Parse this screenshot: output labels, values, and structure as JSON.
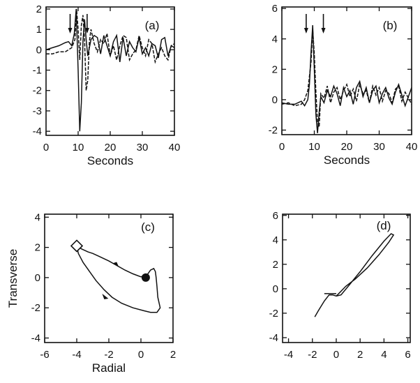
{
  "chart_data": [
    {
      "type": "line",
      "panel_label": "(a)",
      "xlabel": "Seconds",
      "ylabel": "",
      "xlim": [
        0,
        40
      ],
      "ylim": [
        -4.2,
        2.1
      ],
      "xticks": [
        0,
        10,
        20,
        30,
        40
      ],
      "yticks": [
        -4,
        -3,
        -2,
        -1,
        0,
        1,
        2
      ],
      "arrows_x": [
        7.5,
        12.8
      ],
      "series": [
        {
          "name": "",
          "style": "solid",
          "x": [
            0,
            2,
            4,
            6,
            7,
            8,
            8.8,
            9.4,
            10,
            10.5,
            11,
            11.5,
            12,
            12.5,
            13,
            14,
            15,
            16,
            17,
            18,
            19,
            20,
            21,
            22,
            23,
            24,
            25,
            26,
            27,
            28,
            29,
            30,
            31,
            32,
            33,
            34,
            35,
            36,
            37,
            38,
            39,
            40
          ],
          "y": [
            0,
            0.1,
            0.2,
            0.35,
            0.4,
            0.2,
            0.8,
            2.0,
            -1.0,
            -4.0,
            -2.6,
            0.4,
            1.5,
            0.5,
            -0.3,
            0.5,
            0.7,
            0.6,
            -0.2,
            0.7,
            0.2,
            -0.3,
            0.4,
            0.7,
            -0.6,
            0.6,
            -0.3,
            0.4,
            0.1,
            -0.1,
            0.6,
            -0.2,
            0.1,
            -0.3,
            0.3,
            0.2,
            -0.4,
            0.5,
            0.6,
            -0.3,
            0.2,
            0.1
          ]
        },
        {
          "name": "",
          "style": "dashed",
          "x": [
            0,
            2,
            4,
            6,
            7,
            8,
            9,
            9.5,
            10,
            10.5,
            11,
            11.5,
            12,
            12.5,
            13,
            13.5,
            14,
            15,
            16,
            17,
            18,
            19,
            20,
            21,
            22,
            23,
            24,
            25,
            26,
            27,
            28,
            29,
            30,
            31,
            32,
            33,
            34,
            35,
            36,
            37,
            38,
            39,
            40
          ],
          "y": [
            -0.2,
            -0.2,
            -0.1,
            -0.1,
            0,
            0.1,
            0.5,
            2.0,
            1.0,
            -0.5,
            1.2,
            1.7,
            0.5,
            -2.0,
            -1.5,
            0.4,
            1.0,
            0.3,
            -0.1,
            0.5,
            0.3,
            0.8,
            -0.3,
            0.2,
            -0.5,
            0.2,
            0.7,
            0.6,
            -0.5,
            -0.2,
            0,
            0.7,
            0.1,
            -0.3,
            0.5,
            0.3,
            -0.6,
            -0.2,
            0.1,
            -0.3,
            -0.5,
            0.2,
            0.3
          ]
        }
      ]
    },
    {
      "type": "line",
      "panel_label": "(b)",
      "xlabel": "Seconds",
      "ylabel": "",
      "xlim": [
        0,
        40
      ],
      "ylim": [
        -2.3,
        6.1
      ],
      "xticks": [
        0,
        10,
        20,
        30,
        40
      ],
      "yticks": [
        -2,
        0,
        2,
        4,
        6
      ],
      "arrows_x": [
        7.5,
        12.8
      ],
      "series": [
        {
          "name": "",
          "style": "solid",
          "x": [
            0,
            2,
            4,
            6,
            7,
            8,
            8.5,
            9,
            9.5,
            10,
            10.5,
            11,
            11.5,
            12,
            13,
            14,
            15,
            16,
            17,
            18,
            19,
            20,
            21,
            22,
            23,
            24,
            25,
            26,
            27,
            28,
            29,
            30,
            31,
            32,
            33,
            34,
            35,
            36,
            37,
            38,
            39,
            40
          ],
          "y": [
            -0.2,
            -0.3,
            -0.3,
            -0.1,
            -0.4,
            0,
            1.0,
            3.2,
            4.9,
            2.0,
            -1.0,
            -2.2,
            -0.8,
            0.2,
            -0.2,
            0.6,
            0.2,
            0.9,
            0.4,
            -0.4,
            0.8,
            0.2,
            0.6,
            -0.3,
            0.8,
            1.2,
            0.2,
            0.8,
            -0.2,
            0.6,
            0.9,
            -0.2,
            0.4,
            0.8,
            0.1,
            -0.3,
            0.5,
            1.0,
            0.3,
            -0.4,
            0.2,
            0.8
          ]
        },
        {
          "name": "",
          "style": "dashed",
          "x": [
            0,
            2,
            4,
            6,
            7,
            8,
            9,
            9.5,
            10,
            10.5,
            11,
            11.5,
            12,
            13,
            14,
            15,
            16,
            17,
            18,
            19,
            20,
            21,
            22,
            23,
            24,
            25,
            26,
            27,
            28,
            29,
            30,
            31,
            32,
            33,
            34,
            35,
            36,
            37,
            38,
            39,
            40
          ],
          "y": [
            -0.3,
            -0.2,
            -0.4,
            -0.3,
            0,
            0.6,
            2.5,
            4.6,
            3.0,
            0.5,
            -1.5,
            -1.8,
            0.4,
            0.1,
            0.9,
            -0.2,
            0.5,
            0.8,
            0,
            0.6,
            1.0,
            0.2,
            0.7,
            -0.1,
            1.0,
            0.4,
            0.6,
            -0.2,
            0.9,
            0.3,
            0.8,
            -0.1,
            0.6,
            0.4,
            -0.2,
            0.7,
            0.9,
            -0.1,
            0.5,
            0.1,
            -0.3
          ]
        }
      ]
    },
    {
      "type": "line",
      "panel_label": "(c)",
      "xlabel": "Radial",
      "ylabel": "Transverse",
      "xlim": [
        -6,
        2
      ],
      "ylim": [
        -4.3,
        4.2
      ],
      "xticks": [
        -6,
        -4,
        -2,
        0,
        2
      ],
      "yticks": [
        -4,
        -2,
        0,
        2,
        4
      ],
      "start_marker": {
        "shape": "diamond",
        "x": -4,
        "y": 2.1
      },
      "end_marker": {
        "shape": "filled-circle",
        "x": 0.3,
        "y": 0
      },
      "series": [
        {
          "name": "",
          "style": "solid",
          "x": [
            -4,
            -3.7,
            -3.3,
            -3,
            -2.6,
            -2,
            -1.5,
            -1,
            -0.5,
            0,
            0.4,
            0.6,
            0.8,
            0.9,
            0.95,
            1,
            1.05,
            1.2,
            1.0,
            0.6,
            0.2,
            -0.5,
            -1.2,
            -1.8,
            -2.3,
            -2.8,
            -3.2,
            -3.6,
            -3.9,
            -4
          ],
          "y": [
            2.1,
            1.9,
            1.7,
            1.6,
            1.4,
            1.1,
            0.8,
            0.5,
            0.25,
            0.05,
            0.2,
            0.5,
            0.6,
            0.4,
            0,
            -0.6,
            -1.3,
            -2.0,
            -2.3,
            -2.3,
            -2.2,
            -2.0,
            -1.7,
            -1.3,
            -0.8,
            -0.2,
            0.4,
            1.0,
            1.6,
            2.1
          ]
        }
      ]
    },
    {
      "type": "line",
      "panel_label": "(d)",
      "xlabel": "",
      "ylabel": "",
      "xlim": [
        -4.5,
        6.2
      ],
      "ylim": [
        -4.4,
        6.1
      ],
      "xticks": [
        -4,
        -2,
        0,
        2,
        4,
        6
      ],
      "yticks": [
        -4,
        -2,
        0,
        2,
        4,
        6
      ],
      "series": [
        {
          "name": "",
          "style": "solid",
          "x": [
            -1.8,
            -1.5,
            -1.0,
            -0.6,
            -0.3,
            0,
            0.4,
            1.0,
            2.0,
            3.0,
            4.0,
            4.6,
            4.8,
            4.4,
            3.6,
            2.6,
            1.6,
            0.8,
            0.3,
            0
          ],
          "y": [
            -2.3,
            -1.8,
            -1.0,
            -0.5,
            -0.5,
            -0.6,
            -0.5,
            0.2,
            1.4,
            2.7,
            3.9,
            4.5,
            4.4,
            3.8,
            2.8,
            1.7,
            0.8,
            0.2,
            -0.3,
            -0.6
          ]
        }
      ],
      "cross_segment": {
        "x": [
          -1.0,
          0
        ],
        "y": [
          -0.4,
          -0.4
        ]
      }
    }
  ]
}
